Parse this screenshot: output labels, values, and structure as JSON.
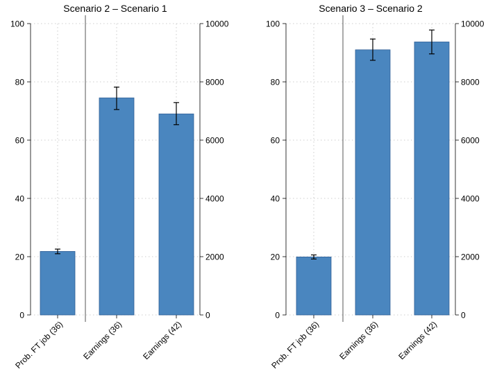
{
  "colors": {
    "bar_fill": "#4a86bf",
    "bar_stroke": "#2f5f96",
    "grid": "#bfbfbf",
    "axis": "#000000",
    "divider": "#555555"
  },
  "chart_data": [
    {
      "type": "bar",
      "title": "Scenario 2 – Scenario 1",
      "categories": [
        "Prob. FT job (36)",
        "Earnings (36)",
        "Earnings (42)"
      ],
      "left_axis": {
        "ylim": [
          0,
          100
        ],
        "ticks": [
          "0",
          "20",
          "40",
          "60",
          "80",
          "100"
        ]
      },
      "right_axis": {
        "ylim": [
          0,
          10000
        ],
        "ticks": [
          "0",
          "2000",
          "4000",
          "6000",
          "8000",
          "10000"
        ]
      },
      "bars": [
        {
          "category": "Prob. FT job (36)",
          "axis": "left",
          "value": 21.8,
          "ci_low": 21.0,
          "ci_high": 22.6
        },
        {
          "category": "Earnings (36)",
          "axis": "right",
          "value": 7450,
          "ci_low": 7050,
          "ci_high": 7820
        },
        {
          "category": "Earnings (42)",
          "axis": "right",
          "value": 6900,
          "ci_low": 6530,
          "ci_high": 7290
        }
      ],
      "grid": true
    },
    {
      "type": "bar",
      "title": "Scenario 3 – Scenario 2",
      "categories": [
        "Prob. FT job (36)",
        "Earnings (36)",
        "Earnings (42)"
      ],
      "left_axis": {
        "ylim": [
          0,
          100
        ],
        "ticks": [
          "0",
          "20",
          "40",
          "60",
          "80",
          "100"
        ]
      },
      "right_axis": {
        "ylim": [
          0,
          10000
        ],
        "ticks": [
          "0",
          "2000",
          "4000",
          "6000",
          "8000",
          "10000"
        ]
      },
      "bars": [
        {
          "category": "Prob. FT job (36)",
          "axis": "left",
          "value": 19.9,
          "ci_low": 19.2,
          "ci_high": 20.6
        },
        {
          "category": "Earnings (36)",
          "axis": "right",
          "value": 9100,
          "ci_low": 8740,
          "ci_high": 9470
        },
        {
          "category": "Earnings (42)",
          "axis": "right",
          "value": 9370,
          "ci_low": 8960,
          "ci_high": 9780
        }
      ],
      "grid": true
    }
  ]
}
